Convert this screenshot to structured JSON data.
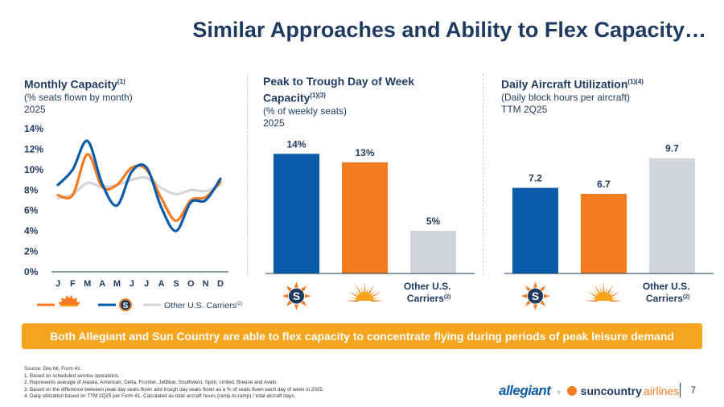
{
  "title": "Similar Approaches and Ability to Flex Capacity…",
  "panel1": {
    "heading": "Monthly Capacity",
    "heading_note": "(1)",
    "sub1": "(% seats flown by month)",
    "sub2": "2025",
    "other_legend": "Other U.S. Carriers",
    "other_legend_note": "(2)"
  },
  "panel2": {
    "heading1": "Peak to Trough Day of Week",
    "heading2": "Capacity",
    "heading_note": "(1)(3)",
    "sub1": "(% of weekly seats)",
    "sub2": "2025"
  },
  "panel3": {
    "heading": "Daily Aircraft Utilization",
    "heading_note": "(1)(4)",
    "sub1": "(Daily block hours per aircraft)",
    "sub2": "TTM 2Q25"
  },
  "chart_data": [
    {
      "type": "line",
      "title": "Monthly Capacity",
      "ylabel": "% seats flown by month",
      "ylim": [
        0,
        14
      ],
      "yticks": [
        "0%",
        "2%",
        "4%",
        "6%",
        "8%",
        "10%",
        "12%",
        "14%"
      ],
      "categories": [
        "J",
        "F",
        "M",
        "A",
        "M",
        "J",
        "J",
        "A",
        "S",
        "O",
        "N",
        "D"
      ],
      "series": [
        {
          "name": "Allegiant",
          "color": "#f47b20",
          "values": [
            7.5,
            7.5,
            11.5,
            8.3,
            8.5,
            10.2,
            10.0,
            7.2,
            5.0,
            7.0,
            7.3,
            8.8
          ]
        },
        {
          "name": "Sun Country",
          "color": "#0a5ca8",
          "values": [
            8.5,
            10.0,
            12.8,
            8.6,
            6.5,
            9.8,
            10.2,
            6.3,
            4.0,
            6.8,
            7.0,
            9.1
          ]
        },
        {
          "name": "Other U.S. Carriers",
          "color": "#d3d7dc",
          "values": [
            7.2,
            7.6,
            8.7,
            8.3,
            8.5,
            9.0,
            9.2,
            8.2,
            7.6,
            8.0,
            7.9,
            8.5
          ]
        }
      ]
    },
    {
      "type": "bar",
      "title": "Peak to Trough Day of Week Capacity",
      "ylim": [
        0,
        16
      ],
      "categories": [
        "Sun Country",
        "Allegiant",
        "Other U.S. Carriers"
      ],
      "values": [
        14,
        13,
        5
      ],
      "labels": [
        "14%",
        "13%",
        "5%"
      ],
      "colors": [
        "#0a5ca8",
        "#f47b20",
        "#d3d7dc"
      ]
    },
    {
      "type": "bar",
      "title": "Daily Aircraft Utilization",
      "ylim": [
        0,
        11.5
      ],
      "categories": [
        "Sun Country",
        "Allegiant",
        "Other U.S. Carriers"
      ],
      "values": [
        7.2,
        6.7,
        9.7
      ],
      "labels": [
        "7.2",
        "6.7",
        "9.7"
      ],
      "colors": [
        "#0a5ca8",
        "#f47b20",
        "#d3d7dc"
      ]
    }
  ],
  "bar_axis": {
    "other_line1": "Other U.S.",
    "other_line2": "Carriers",
    "other_note": "(2)"
  },
  "banner": "Both Allegiant and Sun Country are able to flex capacity to concentrate flying during periods of peak leisure demand",
  "footnotes": [
    "Source: Diio Mi, Form 41.",
    "1.   Based on scheduled service operations.",
    "2.   Represents average of Alaska, American, Delta, Frontier, JetBlue, Southwest, Spirit, United, Breeze and Avelo.",
    "3.   Based on the difference between peak day seats flown and trough day seats flown as a % of seats flown each day of week in 2025.",
    "4.   Daily utilization based on TTM 2Q25 per Form 41. Calculated as total aircraft hours (ramp-to-ramp) / total aircraft days."
  ],
  "brand": {
    "allegiant": "allegiant",
    "plus": "+",
    "sun": "sun",
    "country": "country",
    "airlines": "airlines"
  },
  "page_number": "7",
  "colors": {
    "navy": "#1f3a5f",
    "allegiant_orange": "#f47b20",
    "suncountry_blue": "#0a5ca8",
    "other_gray": "#d3d7dc",
    "banner": "#f5a51b"
  }
}
